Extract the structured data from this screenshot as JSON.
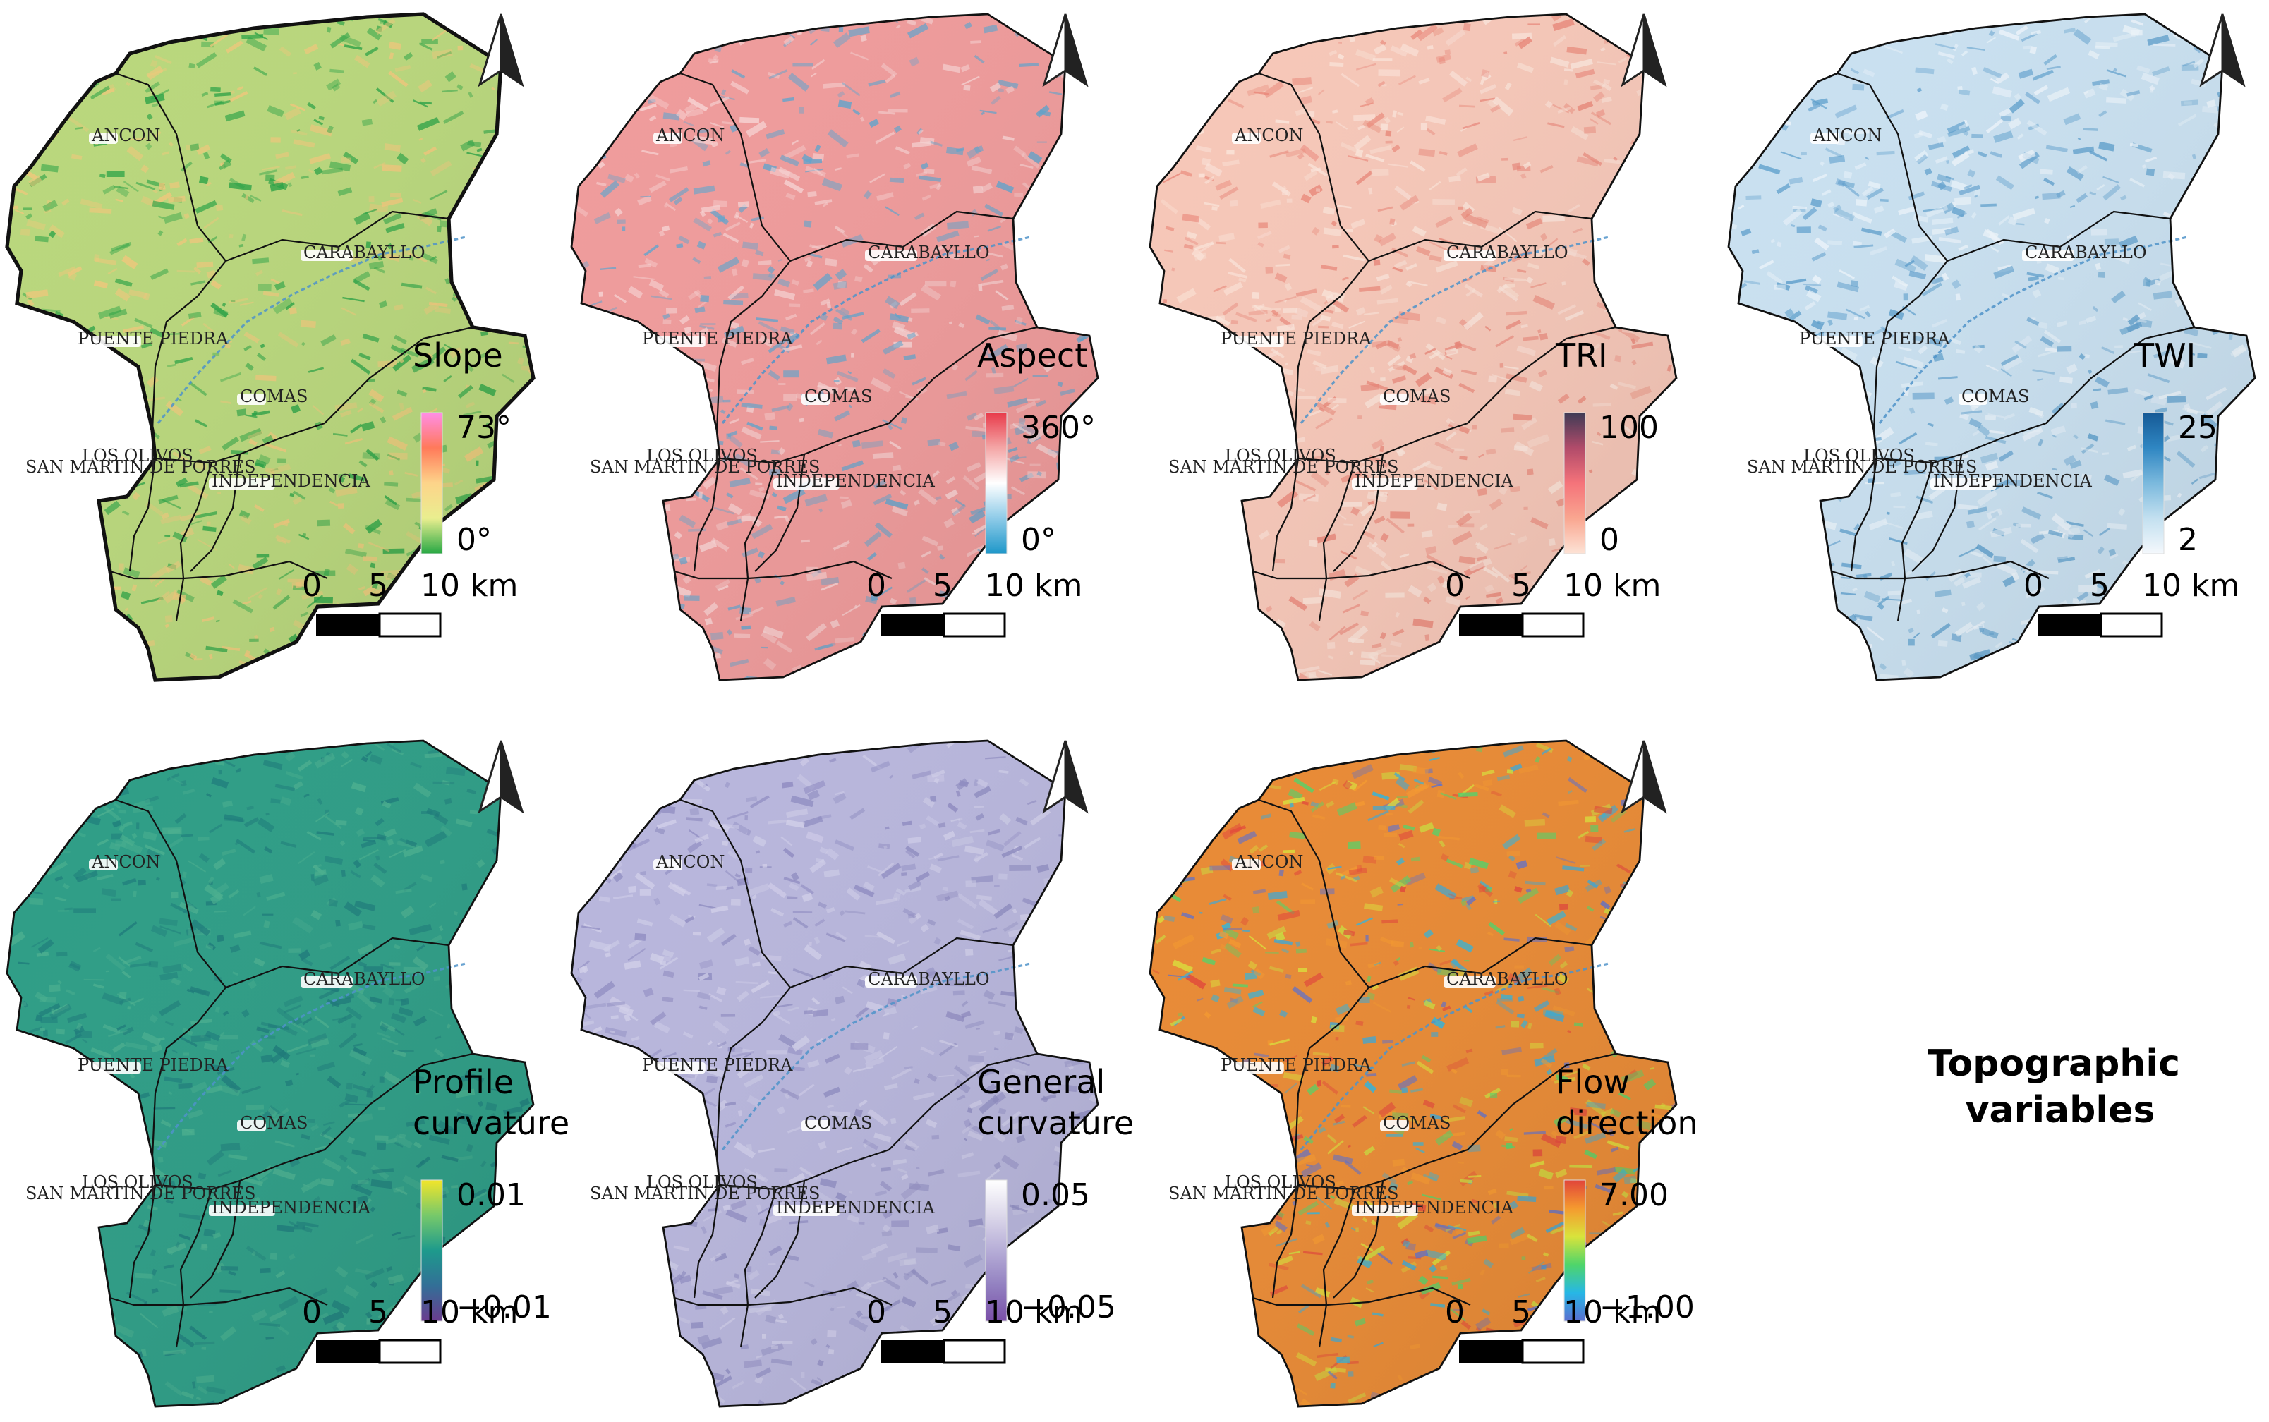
{
  "figure_title": "Topographic variables",
  "scale_bar": {
    "labels": [
      "0",
      "5",
      "10 km"
    ]
  },
  "district_labels": [
    "ANCON",
    "CARABAYLLO",
    "PUENTE PIEDRA",
    "COMAS",
    "LOS OLIVOS",
    "SAN MARTIN DE PORRES",
    "INDEPENDENCIA"
  ],
  "panels": [
    {
      "title": "Slope",
      "max_label": "73°",
      "min_label": "0°",
      "legend_colors": [
        "#ff8ee6",
        "#ff7a5a",
        "#fdd48a",
        "#e9ee8f",
        "#27a844"
      ],
      "map_base": "#b9d77c",
      "map_light": "#f2c77b",
      "map_dark": "#27a244",
      "border_color": "#111111"
    },
    {
      "title": "Aspect",
      "max_label": "360°",
      "min_label": "0°",
      "legend_colors": [
        "#e83a4a",
        "#f4a6a6",
        "#ffffff",
        "#8ecbe8",
        "#1e97c9"
      ],
      "map_base": "#ef9b9b",
      "map_light": "#f7d5d5",
      "map_dark": "#5fa4cd",
      "border_color": "#111111"
    },
    {
      "title": "TRI",
      "max_label": "100",
      "min_label": "0",
      "legend_colors": [
        "#3f3b55",
        "#b14b6a",
        "#f5737a",
        "#f9a690",
        "#fde3d6"
      ],
      "map_base": "#f6c7b8",
      "map_light": "#fbe6dc",
      "map_dark": "#e98577",
      "border_color": "#111111"
    },
    {
      "title": "TWI",
      "max_label": "25",
      "min_label": "2",
      "legend_colors": [
        "#165a96",
        "#2f86c2",
        "#7bb9dd",
        "#c3e0f0",
        "#f4f8fc"
      ],
      "map_base": "#c9e0f0",
      "map_light": "#eef5fb",
      "map_dark": "#5a9ccb",
      "border_color": "#111111"
    },
    {
      "title": "Profile curvature",
      "title_lines": [
        "Profile",
        "curvature"
      ],
      "max_label": "0.01",
      "min_label": "−0.01",
      "legend_colors": [
        "#f2e52a",
        "#77c96a",
        "#1d9a8c",
        "#336f97",
        "#6a3d8f"
      ],
      "map_base": "#2e9d86",
      "map_light": "#4bb08f",
      "map_dark": "#1c7a7a",
      "border_color": "#111111"
    },
    {
      "title": "General curvature",
      "title_lines": [
        "General",
        "curvature"
      ],
      "max_label": "0.05",
      "min_label": "−0.05",
      "legend_colors": [
        "#ffffff",
        "#dcd8ea",
        "#b6add7",
        "#9280c0",
        "#7a4fa8"
      ],
      "map_base": "#b8b6dc",
      "map_light": "#d2d0ea",
      "map_dark": "#8d8ac0",
      "border_color": "#111111"
    },
    {
      "title": "Flow direction",
      "title_lines": [
        "Flow",
        "direction"
      ],
      "max_label": "7.00",
      "min_label": "−1.00",
      "legend_colors": [
        "#e1443a",
        "#f59a2f",
        "#d9e33b",
        "#4fd56a",
        "#27b7e6",
        "#5a6fd0"
      ],
      "map_base": "#e88a35",
      "map_light": "#c9e03f",
      "map_dark": "#3aa8d8",
      "border_color": "#111111"
    }
  ]
}
